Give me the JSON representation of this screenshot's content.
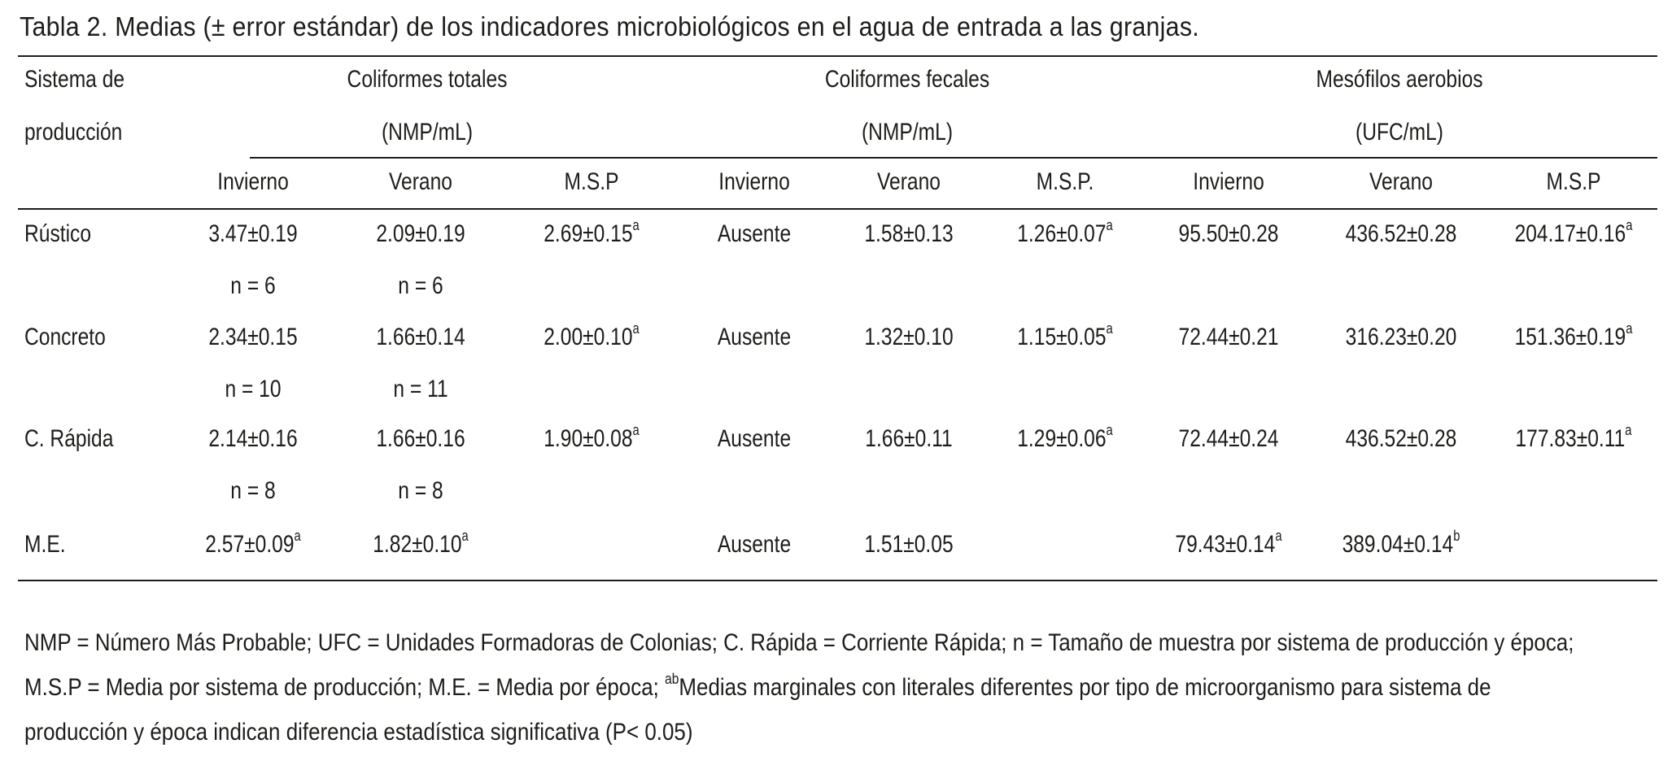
{
  "caption": "Tabla 2. Medias (± error estándar) de los indicadores microbiológicos en el agua de entrada a las granjas.",
  "header": {
    "system_line1": "Sistema de",
    "system_line2": "producción",
    "groups": [
      {
        "title": "Coliformes totales",
        "unit": "(NMP/mL)"
      },
      {
        "title": "Coliformes fecales",
        "unit": "(NMP/mL)"
      },
      {
        "title": "Mesófilos aerobios",
        "unit": "(UFC/mL)"
      }
    ],
    "subheaders": [
      "Invierno",
      "Verano",
      "M.S.P",
      "Invierno",
      "Verano",
      "M.S.P.",
      "Invierno",
      "Verano",
      "M.S.P"
    ]
  },
  "rows": [
    {
      "system": "Rústico",
      "values": [
        {
          "v": "3.47±0.19"
        },
        {
          "v": "2.09±0.19"
        },
        {
          "v": "2.69±0.15",
          "sup": "a"
        },
        {
          "v": "Ausente"
        },
        {
          "v": "1.58±0.13"
        },
        {
          "v": "1.26±0.07",
          "sup": "a"
        },
        {
          "v": "95.50±0.28"
        },
        {
          "v": "436.52±0.28"
        },
        {
          "v": "204.17±0.16",
          "sup": "a"
        }
      ],
      "n_invierno": "n = 6",
      "n_verano": "n = 6"
    },
    {
      "system": "Concreto",
      "values": [
        {
          "v": "2.34±0.15"
        },
        {
          "v": "1.66±0.14"
        },
        {
          "v": "2.00±0.10",
          "sup": "a"
        },
        {
          "v": "Ausente"
        },
        {
          "v": "1.32±0.10"
        },
        {
          "v": "1.15±0.05",
          "sup": "a"
        },
        {
          "v": "72.44±0.21"
        },
        {
          "v": "316.23±0.20"
        },
        {
          "v": "151.36±0.19",
          "sup": "a"
        }
      ],
      "n_invierno": "n = 10",
      "n_verano": "n = 11"
    },
    {
      "system": "C. Rápida",
      "values": [
        {
          "v": "2.14±0.16"
        },
        {
          "v": "1.66±0.16"
        },
        {
          "v": "1.90±0.08",
          "sup": "a"
        },
        {
          "v": "Ausente"
        },
        {
          "v": "1.66±0.11"
        },
        {
          "v": "1.29±0.06",
          "sup": "a"
        },
        {
          "v": "72.44±0.24"
        },
        {
          "v": "436.52±0.28"
        },
        {
          "v": "177.83±0.11",
          "sup": "a"
        }
      ],
      "n_invierno": "n = 8",
      "n_verano": "n = 8"
    },
    {
      "system": "M.E.",
      "values": [
        {
          "v": "2.57±0.09",
          "sup": "a"
        },
        {
          "v": "1.82±0.10",
          "sup": "a"
        },
        {
          "v": ""
        },
        {
          "v": "Ausente"
        },
        {
          "v": "1.51±0.05"
        },
        {
          "v": ""
        },
        {
          "v": "79.43±0.14",
          "sup": "a"
        },
        {
          "v": "389.04±0.14",
          "sup": "b"
        },
        {
          "v": ""
        }
      ],
      "n_invierno": "",
      "n_verano": ""
    }
  ],
  "footnote": {
    "line1": "NMP = Número Más Probable; UFC = Unidades Formadoras de Colonias; C. Rápida = Corriente Rápida; n = Tamaño de muestra por sistema de producción y época;",
    "line2_pre": "M.S.P = Media por sistema de producción; M.E. = Media por época; ",
    "line2_sup": "ab",
    "line2_post": "Medias marginales con literales diferentes por tipo de microorganismo para sistema de",
    "line3": "producción y época indican diferencia estadística significativa (P< 0.05)"
  }
}
